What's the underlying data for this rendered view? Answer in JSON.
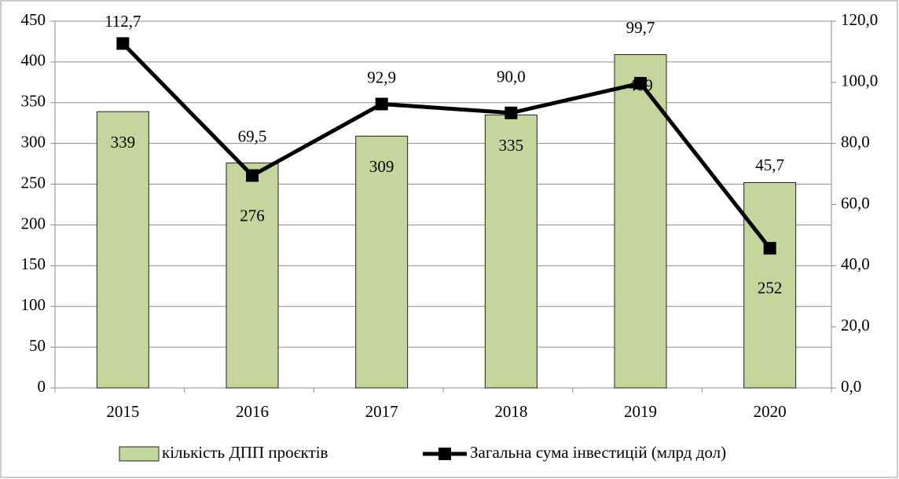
{
  "chart_data": {
    "type": "bar-line",
    "categories": [
      "2015",
      "2016",
      "2017",
      "2018",
      "2019",
      "2020"
    ],
    "series": [
      {
        "name": "кількість ДПП проєктів",
        "type": "bar",
        "color": "#c3d69b",
        "values": [
          339,
          276,
          309,
          335,
          409,
          252
        ]
      },
      {
        "name": "Загальна сума інвестицій (млрд дол)",
        "type": "line",
        "axis": "y2",
        "color": "#000000",
        "values": [
          112.7,
          69.5,
          92.9,
          90.0,
          99.7,
          45.7
        ],
        "value_labels": [
          "112,7",
          "69,5",
          "92,9",
          "90,0",
          "99,7",
          "45,7"
        ]
      }
    ],
    "ylim": [
      0,
      450
    ],
    "yticks": [
      0,
      50,
      100,
      150,
      200,
      250,
      300,
      350,
      400,
      450
    ],
    "y2lim": [
      0,
      120
    ],
    "y2ticks": [
      {
        "value": 0,
        "label": "0,0"
      },
      {
        "value": 20,
        "label": "20,0"
      },
      {
        "value": 40,
        "label": "40,0"
      },
      {
        "value": 60,
        "label": "60,0"
      },
      {
        "value": 80,
        "label": "80,0"
      },
      {
        "value": 100,
        "label": "100,0"
      },
      {
        "value": 120,
        "label": "120,0"
      }
    ],
    "grid": true,
    "legend": "bottom"
  }
}
